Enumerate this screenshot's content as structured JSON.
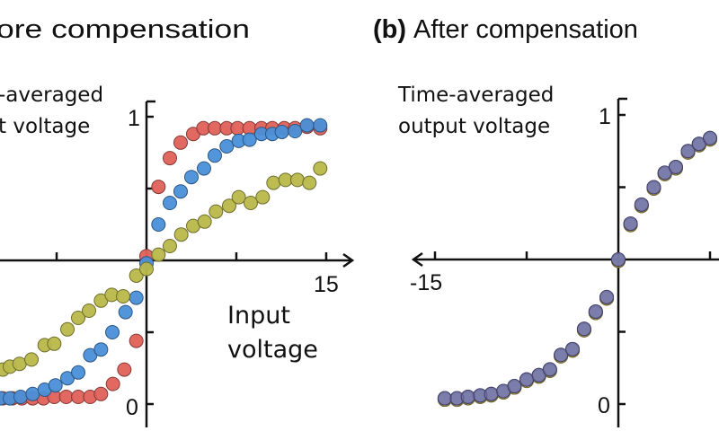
{
  "chart_data": [
    {
      "type": "scatter",
      "title": "ore compensation",
      "ylabel_lines": [
        "-averaged",
        "t voltage"
      ],
      "xlabel_lines": [
        "Input",
        "voltage"
      ],
      "x_tick_labels": [
        "15"
      ],
      "y_tick_labels": [
        "1",
        "0"
      ],
      "xlim": [
        -12.2,
        15.5
      ],
      "ylim": [
        0,
        1
      ],
      "x_axis_crosses_y": 0.5,
      "x_ticks": [
        -7.5,
        7.5,
        15
      ],
      "y_ticks": [
        0,
        0.25,
        0.75,
        1
      ],
      "grid": false,
      "series": [
        {
          "color": "#e0605a",
          "points": [
            [
              -12,
              0.02
            ],
            [
              -11.2,
              0.02
            ],
            [
              -10.4,
              0.02
            ],
            [
              -9.5,
              0.02
            ],
            [
              -8.6,
              0.02
            ],
            [
              -7.7,
              0.025
            ],
            [
              -6.7,
              0.025
            ],
            [
              -5.7,
              0.025
            ],
            [
              -4.7,
              0.025
            ],
            [
              -3.8,
              0.035
            ],
            [
              -2.8,
              0.07
            ],
            [
              -1.85,
              0.12
            ],
            [
              -0.85,
              0.22
            ],
            [
              0,
              0.515
            ],
            [
              1,
              0.756
            ],
            [
              1.95,
              0.856
            ],
            [
              2.85,
              0.91
            ],
            [
              3.9,
              0.94
            ],
            [
              4.75,
              0.96
            ],
            [
              5.7,
              0.96
            ],
            [
              6.7,
              0.96
            ],
            [
              7.6,
              0.96
            ],
            [
              8.6,
              0.96
            ],
            [
              9.6,
              0.96
            ],
            [
              10.5,
              0.96
            ],
            [
              11.5,
              0.96
            ],
            [
              12.4,
              0.96
            ],
            [
              13.4,
              0.965
            ],
            [
              14.5,
              0.96
            ]
          ]
        },
        {
          "color": "#4a8fd8",
          "points": [
            [
              -12.2,
              0.02
            ],
            [
              -11.4,
              0.02
            ],
            [
              -10.5,
              0.025
            ],
            [
              -9.5,
              0.035
            ],
            [
              -8.5,
              0.05
            ],
            [
              -7.6,
              0.065
            ],
            [
              -6.6,
              0.09
            ],
            [
              -5.7,
              0.11
            ],
            [
              -4.7,
              0.17
            ],
            [
              -3.8,
              0.19
            ],
            [
              -2.85,
              0.25
            ],
            [
              -1.75,
              0.32
            ],
            [
              -0.85,
              0.37
            ],
            [
              0,
              0.49
            ],
            [
              1,
              0.625
            ],
            [
              1.95,
              0.7
            ],
            [
              2.85,
              0.74
            ],
            [
              3.75,
              0.79
            ],
            [
              4.8,
              0.82
            ],
            [
              5.7,
              0.865
            ],
            [
              6.7,
              0.897
            ],
            [
              7.7,
              0.916
            ],
            [
              8.6,
              0.92
            ],
            [
              9.6,
              0.94
            ],
            [
              10.5,
              0.94
            ],
            [
              11.3,
              0.947
            ],
            [
              12.4,
              0.95
            ],
            [
              13.4,
              0.97
            ],
            [
              14.5,
              0.97
            ]
          ]
        },
        {
          "color": "#b8b84a",
          "points": [
            [
              -12,
              0.12
            ],
            [
              -11.4,
              0.13
            ],
            [
              -10.6,
              0.14
            ],
            [
              -9.6,
              0.155
            ],
            [
              -8.5,
              0.205
            ],
            [
              -7.7,
              0.21
            ],
            [
              -6.6,
              0.26
            ],
            [
              -5.7,
              0.3
            ],
            [
              -4.8,
              0.325
            ],
            [
              -3.8,
              0.36
            ],
            [
              -2.9,
              0.38
            ],
            [
              -1.95,
              0.375
            ],
            [
              -0.85,
              0.447
            ],
            [
              0,
              0.47
            ],
            [
              1,
              0.52
            ],
            [
              1.95,
              0.55
            ],
            [
              2.9,
              0.59
            ],
            [
              3.9,
              0.62
            ],
            [
              4.85,
              0.635
            ],
            [
              5.8,
              0.67
            ],
            [
              6.9,
              0.69
            ],
            [
              7.7,
              0.72
            ],
            [
              8.7,
              0.7
            ],
            [
              9.7,
              0.72
            ],
            [
              10.6,
              0.77
            ],
            [
              11.6,
              0.78
            ],
            [
              12.6,
              0.78
            ],
            [
              13.6,
              0.77
            ],
            [
              14.5,
              0.82
            ]
          ]
        }
      ]
    },
    {
      "type": "scatter",
      "title_bold": "(b)",
      "title": "After compensation",
      "ylabel_lines": [
        "Time-averaged",
        "output voltage"
      ],
      "x_tick_labels": [
        "-15"
      ],
      "y_tick_labels": [
        "1",
        "0"
      ],
      "xlim": [
        -15.5,
        8.2
      ],
      "ylim": [
        0,
        1
      ],
      "x_axis_crosses_y": 0.5,
      "x_ticks": [
        -15,
        -7.5,
        7.5
      ],
      "y_ticks": [
        0,
        0.25,
        0.75,
        1
      ],
      "grid": false,
      "series_colors": [
        "#e0605a",
        "#b8b84a",
        "#4a8fd8",
        "#7a6aa8"
      ],
      "points": [
        [
          -14.2,
          0.02
        ],
        [
          -13.2,
          0.02
        ],
        [
          -12.3,
          0.025
        ],
        [
          -11.3,
          0.03
        ],
        [
          -10.4,
          0.035
        ],
        [
          -9.4,
          0.045
        ],
        [
          -8.5,
          0.062
        ],
        [
          -7.5,
          0.085
        ],
        [
          -6.5,
          0.1
        ],
        [
          -5.6,
          0.12
        ],
        [
          -4.7,
          0.17
        ],
        [
          -3.75,
          0.19
        ],
        [
          -2.8,
          0.26
        ],
        [
          -1.85,
          0.32
        ],
        [
          -0.95,
          0.37
        ],
        [
          0,
          0.5
        ],
        [
          1,
          0.624
        ],
        [
          1.9,
          0.69
        ],
        [
          2.9,
          0.75
        ],
        [
          3.8,
          0.8
        ],
        [
          4.7,
          0.82
        ],
        [
          5.7,
          0.875
        ],
        [
          6.6,
          0.9
        ],
        [
          7.5,
          0.92
        ]
      ]
    }
  ]
}
